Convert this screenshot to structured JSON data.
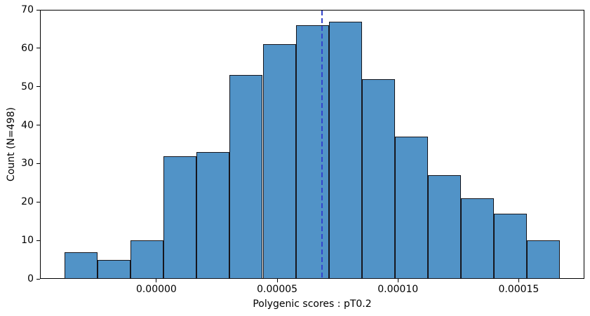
{
  "chart_data": {
    "type": "bar",
    "subtype": "histogram",
    "title": "",
    "xlabel": "Polygenic scores : pT0.2",
    "ylabel": "Count (N=498)",
    "n_total": 498,
    "bin_start": -3.8e-05,
    "bin_width": 1.367e-05,
    "bin_edges": [
      -3.8e-05,
      -2.43e-05,
      -1.07e-05,
      3e-06,
      1.67e-05,
      3.03e-05,
      4.4e-05,
      5.77e-05,
      7.13e-05,
      8.5e-05,
      9.87e-05,
      0.0001123,
      0.000126,
      0.0001397,
      0.0001533,
      0.000167
    ],
    "counts": [
      7,
      5,
      10,
      32,
      33,
      53,
      61,
      66,
      67,
      52,
      37,
      27,
      21,
      17,
      10
    ],
    "xlim": [
      -4.82e-05,
      0.0001772
    ],
    "ylim": [
      0,
      70
    ],
    "x_tick_values": [
      0.0,
      5e-05,
      0.0001,
      0.00015
    ],
    "x_tick_labels": [
      "0.00000",
      "0.00005",
      "0.00010",
      "0.00015"
    ],
    "y_tick_values": [
      0,
      10,
      20,
      30,
      40,
      50,
      60,
      70
    ],
    "y_tick_labels": [
      "0",
      "10",
      "20",
      "30",
      "40",
      "50",
      "60",
      "70"
    ],
    "grid": false,
    "legend": null,
    "vline": {
      "x": 6.85e-05,
      "color": "#3344cc",
      "linestyle": "dashed",
      "linewidth": 2
    },
    "colors": {
      "bar_fill": "#5193c7",
      "bar_edge": "#16161d",
      "axis": "#000000",
      "text": "#000000",
      "background": "#ffffff"
    }
  }
}
